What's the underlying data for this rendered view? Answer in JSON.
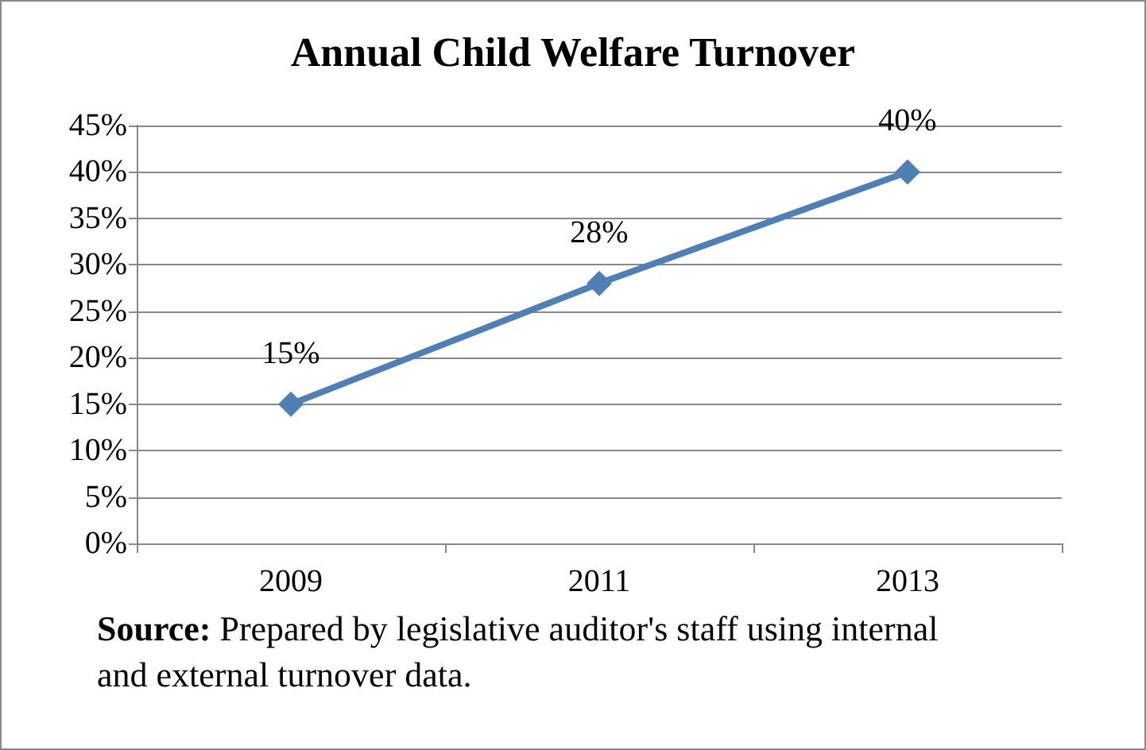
{
  "chart_data": {
    "type": "line",
    "title": "Annual Child Welfare Turnover",
    "categories": [
      "2009",
      "2011",
      "2013"
    ],
    "series": [
      {
        "color": "#4f7fb3",
        "values": [
          15,
          28,
          40
        ],
        "value_labels": [
          "15%",
          "28%",
          "40%"
        ]
      }
    ],
    "ylim": [
      0,
      45
    ],
    "yticks": [
      {
        "value": 0,
        "label": "0%"
      },
      {
        "value": 5,
        "label": "5%"
      },
      {
        "value": 10,
        "label": "10%"
      },
      {
        "value": 15,
        "label": "15%"
      },
      {
        "value": 20,
        "label": "20%"
      },
      {
        "value": 25,
        "label": "25%"
      },
      {
        "value": 30,
        "label": "30%"
      },
      {
        "value": 35,
        "label": "35%"
      },
      {
        "value": 40,
        "label": "40%"
      },
      {
        "value": 45,
        "label": "45%"
      }
    ],
    "grid": "y",
    "marker": "diamond",
    "line_style": "solid",
    "annotations": [
      "Source: Prepared by legislative auditor's staff using internal and external turnover data."
    ]
  }
}
